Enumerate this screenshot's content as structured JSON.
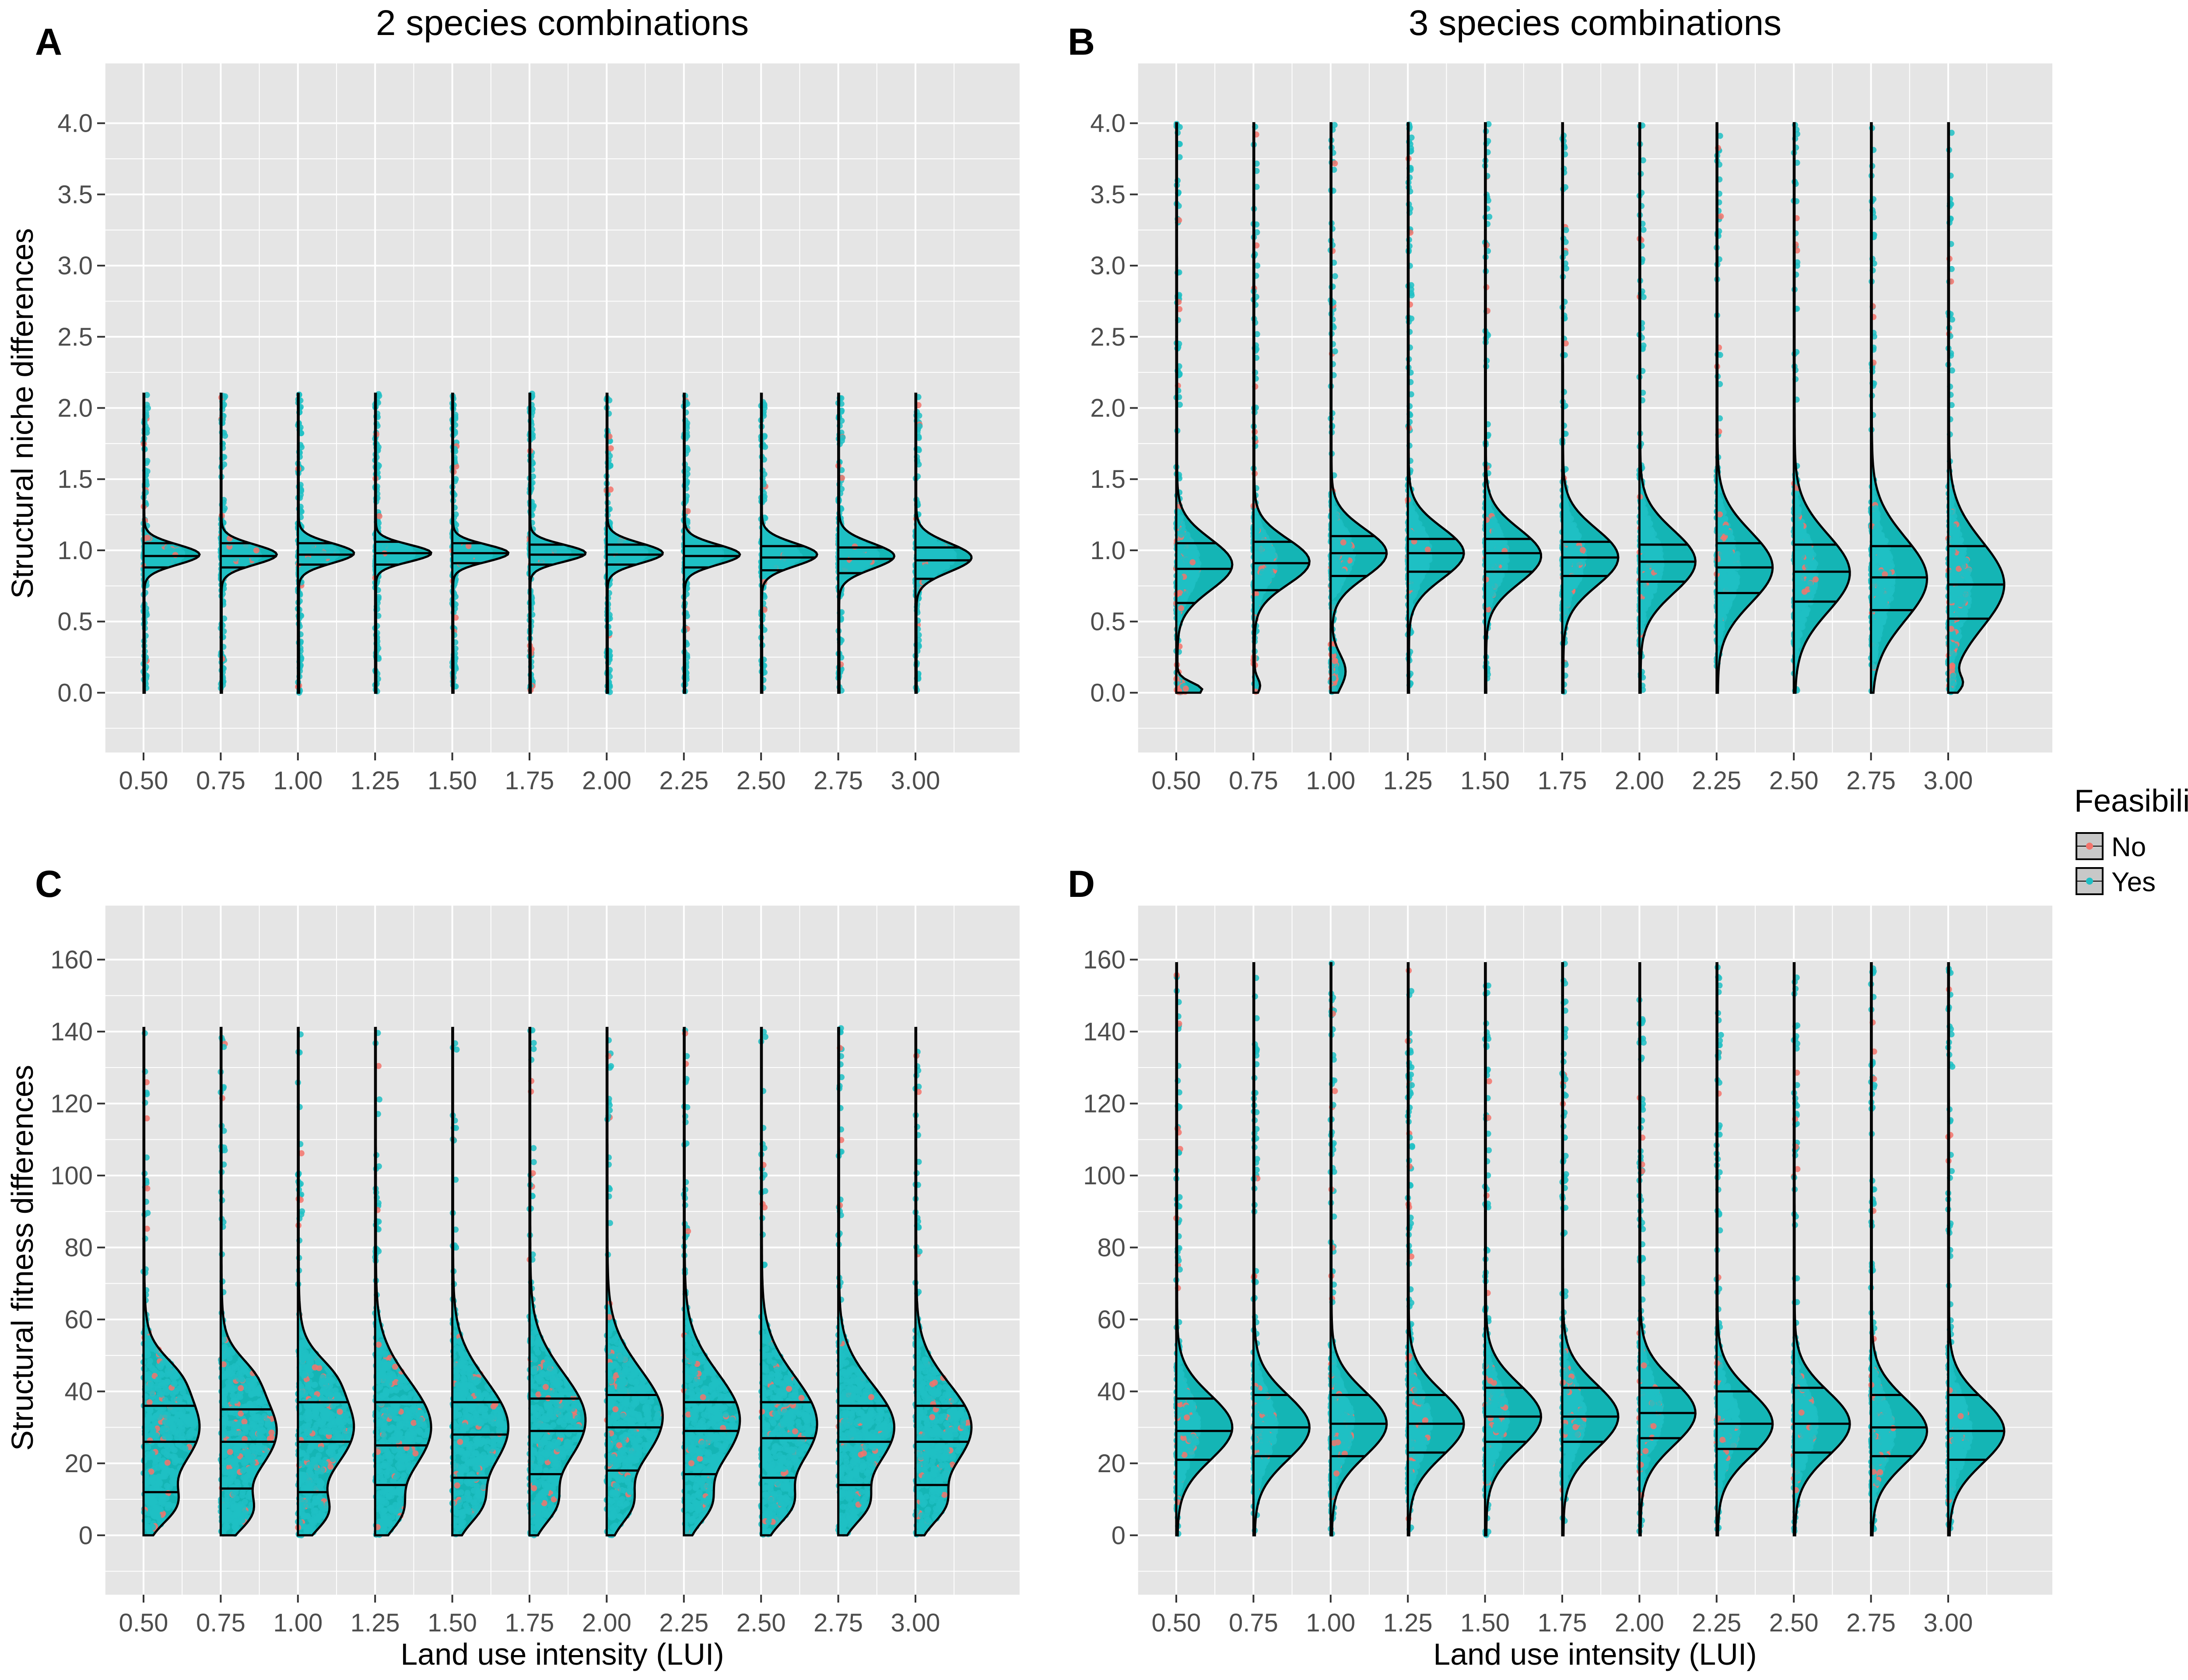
{
  "colors": {
    "panel_bg": "#E5E5E5",
    "grid": "#FFFFFF",
    "violin_fill": "#14B5B5",
    "outline": "#000000",
    "point_yes": "#1FBFC4",
    "point_no": "#F4736B",
    "tick_text": "#4D4D4D",
    "legend_key_bg": "#C8C8C8"
  },
  "legend": {
    "title": "Feasibility",
    "items": [
      {
        "label": "No",
        "color_key": "point_no"
      },
      {
        "label": "Yes",
        "color_key": "point_yes"
      }
    ],
    "placement": "right"
  },
  "chart_data": [
    {
      "id": "A",
      "type": "violin",
      "tag": "A",
      "title": "2 species combinations",
      "xlabel": "",
      "ylabel": "Structural niche differences",
      "categories": [
        "0.50",
        "0.75",
        "1.00",
        "1.25",
        "1.50",
        "1.75",
        "2.00",
        "2.25",
        "2.50",
        "2.75",
        "3.00"
      ],
      "yticks": [
        "0.0",
        "0.5",
        "1.0",
        "1.5",
        "2.0",
        "2.5",
        "3.0",
        "3.5",
        "4.0"
      ],
      "ylim": [
        -0.42,
        4.42
      ],
      "y_range": [
        0,
        2.1
      ],
      "grid": true,
      "quantiles": [
        [
          0.88,
          0.96,
          1.05
        ],
        [
          0.88,
          0.96,
          1.05
        ],
        [
          0.9,
          0.97,
          1.05
        ],
        [
          0.9,
          0.98,
          1.06
        ],
        [
          0.91,
          0.98,
          1.05
        ],
        [
          0.9,
          0.97,
          1.04
        ],
        [
          0.9,
          0.97,
          1.04
        ],
        [
          0.88,
          0.96,
          1.03
        ],
        [
          0.86,
          0.95,
          1.03
        ],
        [
          0.84,
          0.94,
          1.02
        ],
        [
          0.8,
          0.93,
          1.02
        ]
      ],
      "dists": [
        {
          "peaks": [
            [
              0.97,
              0.07,
              1
            ]
          ],
          "no": 0.05
        },
        {
          "peaks": [
            [
              0.97,
              0.07,
              1
            ]
          ],
          "no": 0.05
        },
        {
          "peaks": [
            [
              0.98,
              0.07,
              1
            ]
          ],
          "no": 0.05
        },
        {
          "peaks": [
            [
              0.98,
              0.06,
              1
            ]
          ],
          "no": 0.03
        },
        {
          "peaks": [
            [
              0.98,
              0.06,
              1
            ]
          ],
          "no": 0.03
        },
        {
          "peaks": [
            [
              0.98,
              0.06,
              1
            ]
          ],
          "no": 0.03
        },
        {
          "peaks": [
            [
              0.98,
              0.07,
              1
            ]
          ],
          "no": 0.03
        },
        {
          "peaks": [
            [
              0.97,
              0.07,
              1
            ]
          ],
          "no": 0.03
        },
        {
          "peaks": [
            [
              0.97,
              0.08,
              1
            ]
          ],
          "no": 0.03
        },
        {
          "peaks": [
            [
              0.96,
              0.09,
              1
            ]
          ],
          "no": 0.03
        },
        {
          "peaks": [
            [
              0.95,
              0.1,
              1
            ]
          ],
          "no": 0.03
        }
      ],
      "point_spread": 0.7
    },
    {
      "id": "B",
      "type": "violin",
      "tag": "B",
      "title": "3 species combinations",
      "xlabel": "",
      "ylabel": "",
      "categories": [
        "0.50",
        "0.75",
        "1.00",
        "1.25",
        "1.50",
        "1.75",
        "2.00",
        "2.25",
        "2.50",
        "2.75",
        "3.00"
      ],
      "yticks": [
        "0.0",
        "0.5",
        "1.0",
        "1.5",
        "2.0",
        "2.5",
        "3.0",
        "3.5",
        "4.0"
      ],
      "ylim": [
        -0.42,
        4.42
      ],
      "y_range": [
        0,
        4.0
      ],
      "grid": true,
      "quantiles": [
        [
          0.63,
          0.87,
          1.05
        ],
        [
          0.72,
          0.91,
          1.06
        ],
        [
          0.82,
          0.98,
          1.1
        ],
        [
          0.85,
          0.98,
          1.08
        ],
        [
          0.85,
          0.98,
          1.08
        ],
        [
          0.82,
          0.95,
          1.06
        ],
        [
          0.78,
          0.92,
          1.04
        ],
        [
          0.7,
          0.88,
          1.05
        ],
        [
          0.64,
          0.85,
          1.04
        ],
        [
          0.58,
          0.81,
          1.03
        ],
        [
          0.52,
          0.76,
          1.03
        ]
      ],
      "dists": [
        {
          "peaks": [
            [
              0.9,
              0.18,
              1
            ],
            [
              0.02,
              0.05,
              0.45
            ]
          ],
          "no": 0.12
        },
        {
          "peaks": [
            [
              0.92,
              0.16,
              1
            ],
            [
              0.05,
              0.05,
              0.1
            ]
          ],
          "no": 0.1
        },
        {
          "peaks": [
            [
              0.98,
              0.17,
              1
            ],
            [
              0.15,
              0.12,
              0.25
            ]
          ],
          "no": 0.1
        },
        {
          "peaks": [
            [
              0.98,
              0.18,
              1
            ]
          ],
          "no": 0.05
        },
        {
          "peaks": [
            [
              0.96,
              0.19,
              1
            ]
          ],
          "no": 0.05
        },
        {
          "peaks": [
            [
              0.95,
              0.2,
              1
            ]
          ],
          "no": 0.05
        },
        {
          "peaks": [
            [
              0.92,
              0.22,
              1
            ]
          ],
          "no": 0.05
        },
        {
          "peaks": [
            [
              0.88,
              0.25,
              1
            ]
          ],
          "no": 0.04
        },
        {
          "peaks": [
            [
              0.84,
              0.27,
              1
            ]
          ],
          "no": 0.04
        },
        {
          "peaks": [
            [
              0.8,
              0.29,
              1
            ]
          ],
          "no": 0.04
        },
        {
          "peaks": [
            [
              0.76,
              0.3,
              1
            ],
            [
              0.06,
              0.06,
              0.18
            ]
          ],
          "no": 0.07
        }
      ],
      "point_spread": 0.4
    },
    {
      "id": "C",
      "type": "violin",
      "tag": "C",
      "title": "",
      "xlabel": "Land use intensity (LUI)",
      "ylabel": "Structural fitness differences",
      "categories": [
        "0.50",
        "0.75",
        "1.00",
        "1.25",
        "1.50",
        "1.75",
        "2.00",
        "2.25",
        "2.50",
        "2.75",
        "3.00"
      ],
      "yticks": [
        "0",
        "20",
        "40",
        "60",
        "80",
        "100",
        "120",
        "140",
        "160"
      ],
      "ylim": [
        -16.5,
        175
      ],
      "y_range": [
        0,
        141
      ],
      "grid": true,
      "quantiles": [
        [
          12,
          26,
          36
        ],
        [
          13,
          26,
          35
        ],
        [
          12,
          26,
          37
        ],
        [
          14,
          25,
          37
        ],
        [
          16,
          28,
          37
        ],
        [
          17,
          29,
          38
        ],
        [
          18,
          30,
          39
        ],
        [
          17,
          29,
          37
        ],
        [
          16,
          27,
          37
        ],
        [
          14,
          26,
          36
        ],
        [
          14,
          26,
          36
        ]
      ],
      "dists": [
        {
          "peaks": [
            [
              30,
              12,
              1
            ],
            [
              8,
              5,
              0.4
            ],
            [
              45,
              5,
              0.2
            ]
          ],
          "no": 0.08
        },
        {
          "peaks": [
            [
              29,
              12,
              1
            ],
            [
              6,
              5,
              0.4
            ],
            [
              45,
              5,
              0.2
            ]
          ],
          "no": 0.08
        },
        {
          "peaks": [
            [
              30,
              12,
              1
            ],
            [
              6,
              5,
              0.4
            ],
            [
              45,
              5,
              0.2
            ]
          ],
          "no": 0.08
        },
        {
          "peaks": [
            [
              30,
              13,
              1
            ],
            [
              6,
              5,
              0.3
            ]
          ],
          "no": 0.06
        },
        {
          "peaks": [
            [
              30,
              13,
              1
            ],
            [
              8,
              5,
              0.3
            ]
          ],
          "no": 0.06
        },
        {
          "peaks": [
            [
              32,
              13,
              1
            ],
            [
              8,
              5,
              0.3
            ]
          ],
          "no": 0.06
        },
        {
          "peaks": [
            [
              33,
              13,
              1
            ],
            [
              8,
              5,
              0.3
            ]
          ],
          "no": 0.06
        },
        {
          "peaks": [
            [
              32,
              13,
              1
            ],
            [
              8,
              5,
              0.3
            ]
          ],
          "no": 0.06
        },
        {
          "peaks": [
            [
              31,
              13,
              1
            ],
            [
              8,
              5,
              0.35
            ]
          ],
          "no": 0.06
        },
        {
          "peaks": [
            [
              30,
              12,
              1
            ],
            [
              8,
              5,
              0.35
            ]
          ],
          "no": 0.06
        },
        {
          "peaks": [
            [
              30,
              12,
              1
            ],
            [
              8,
              5,
              0.35
            ]
          ],
          "no": 0.06
        }
      ],
      "point_spread": 0.95
    },
    {
      "id": "D",
      "type": "violin",
      "tag": "D",
      "title": "",
      "xlabel": "Land use intensity (LUI)",
      "ylabel": "",
      "categories": [
        "0.50",
        "0.75",
        "1.00",
        "1.25",
        "1.50",
        "1.75",
        "2.00",
        "2.25",
        "2.50",
        "2.75",
        "3.00"
      ],
      "yticks": [
        "0",
        "20",
        "40",
        "60",
        "80",
        "100",
        "120",
        "140",
        "160"
      ],
      "ylim": [
        -16.5,
        175
      ],
      "y_range": [
        0,
        159
      ],
      "grid": true,
      "quantiles": [
        [
          21,
          29,
          38
        ],
        [
          22,
          30,
          39
        ],
        [
          22,
          31,
          39
        ],
        [
          23,
          31,
          39
        ],
        [
          26,
          33,
          41
        ],
        [
          26,
          33,
          41
        ],
        [
          27,
          34,
          41
        ],
        [
          24,
          31,
          40
        ],
        [
          23,
          31,
          41
        ],
        [
          22,
          30,
          39
        ],
        [
          21,
          29,
          39
        ]
      ],
      "dists": [
        {
          "peaks": [
            [
              30,
              9,
              1
            ]
          ],
          "no": 0.12
        },
        {
          "peaks": [
            [
              30,
              9,
              1
            ]
          ],
          "no": 0.1
        },
        {
          "peaks": [
            [
              31,
              9,
              1
            ]
          ],
          "no": 0.1
        },
        {
          "peaks": [
            [
              31,
              9,
              1
            ]
          ],
          "no": 0.08
        },
        {
          "peaks": [
            [
              33,
              9,
              1
            ]
          ],
          "no": 0.08
        },
        {
          "peaks": [
            [
              33,
              9,
              1
            ]
          ],
          "no": 0.08
        },
        {
          "peaks": [
            [
              34,
              9,
              1
            ]
          ],
          "no": 0.08
        },
        {
          "peaks": [
            [
              31,
              9,
              1
            ]
          ],
          "no": 0.06
        },
        {
          "peaks": [
            [
              31,
              9,
              1
            ]
          ],
          "no": 0.06
        },
        {
          "peaks": [
            [
              29,
              9,
              1
            ]
          ],
          "no": 0.06
        },
        {
          "peaks": [
            [
              29,
              9,
              1
            ]
          ],
          "no": 0.06
        }
      ],
      "point_spread": 0.4
    }
  ]
}
